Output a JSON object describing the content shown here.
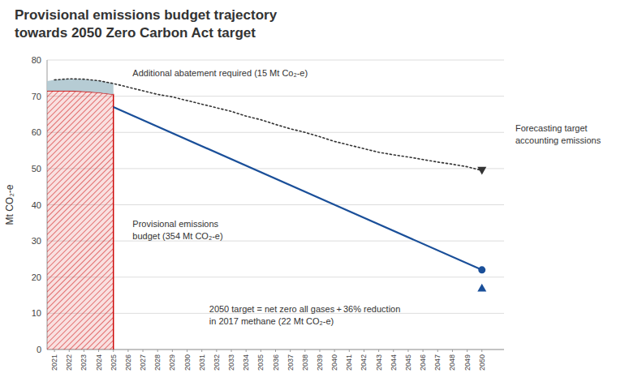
{
  "chart_data": {
    "type": "line",
    "title": "Provisional emissions budget trajectory\ntowards 2050 Zero Carbon Act target",
    "ylabel": "Mt CO₂-e",
    "xlim": [
      2020.5,
      2051.5
    ],
    "xticks": [
      2021,
      2022,
      2023,
      2024,
      2025,
      2026,
      2027,
      2028,
      2029,
      2030,
      2031,
      2032,
      2033,
      2034,
      2035,
      2036,
      2037,
      2038,
      2039,
      2040,
      2041,
      2042,
      2043,
      2044,
      2045,
      2046,
      2047,
      2048,
      2049,
      2050
    ],
    "ylim": [
      0,
      80
    ],
    "yticks": [
      0,
      10,
      20,
      30,
      40,
      50,
      60,
      70,
      80
    ],
    "grid": true,
    "series": [
      {
        "type": "area",
        "color": "#cc0000",
        "x": [
          2020.5,
          2021,
          2022,
          2023,
          2024,
          2025
        ],
        "values": [
          71.5,
          71.5,
          71.5,
          71.3,
          71.0,
          70.5
        ]
      },
      {
        "type": "area",
        "color": "#aec6cf",
        "x": [
          2020.5,
          2021,
          2022,
          2023,
          2024,
          2025
        ],
        "values": [
          74.2,
          74.5,
          74.8,
          74.7,
          74.3,
          73.5
        ],
        "base": [
          71.5,
          71.5,
          71.5,
          71.3,
          71.0,
          70.5
        ]
      },
      {
        "type": "line",
        "line_style": "dotted",
        "color": "#333333",
        "x": [
          2021,
          2022,
          2023,
          2024,
          2025,
          2026,
          2027,
          2028,
          2029,
          2030,
          2031,
          2032,
          2033,
          2034,
          2035,
          2036,
          2037,
          2038,
          2039,
          2040,
          2041,
          2042,
          2043,
          2044,
          2045,
          2046,
          2047,
          2048,
          2049,
          2050
        ],
        "values": [
          74.5,
          74.8,
          74.7,
          74.3,
          73.5,
          72.5,
          71.5,
          70.5,
          69.8,
          68.8,
          67.8,
          66.8,
          65.8,
          64.5,
          63.5,
          62.2,
          61.0,
          60.0,
          58.8,
          57.5,
          56.5,
          55.5,
          54.5,
          53.8,
          53.2,
          52.5,
          51.8,
          51.2,
          50.5,
          49.5
        ]
      },
      {
        "type": "line",
        "line_style": "solid",
        "color": "#1a4f99",
        "x": [
          2025,
          2050
        ],
        "values": [
          67.0,
          22.0
        ]
      },
      {
        "type": "scatter",
        "marker": "circle",
        "color": "#1a4f99",
        "x": [
          2050
        ],
        "values": [
          22.0
        ]
      },
      {
        "type": "scatter",
        "marker": "triangle-up",
        "color": "#1a4f99",
        "x": [
          2050
        ],
        "values": [
          17.0
        ]
      },
      {
        "type": "scatter",
        "marker": "triangle-down",
        "color": "#333333",
        "x": [
          2050
        ],
        "values": [
          49.5
        ]
      }
    ],
    "annotations": [
      "Additional abatement required (15 Mt Co₂-e)",
      "Provisional emissions\nbudget (354 Mt CO₂-e)",
      "2050 target = net zero all gases + 36% reduction\nin 2017 methane  (22 Mt CO₂-e)",
      "Forecasting target\naccounting emissions"
    ]
  }
}
